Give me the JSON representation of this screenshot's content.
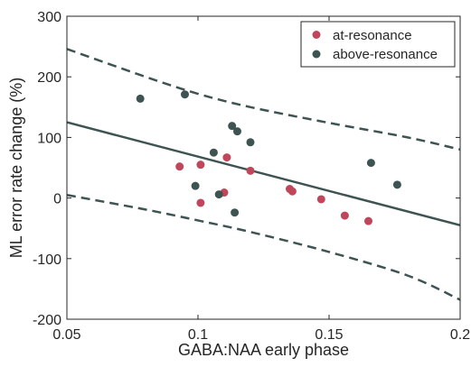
{
  "chart_data": {
    "type": "scatter",
    "title": "",
    "xlabel": "GABA:NAA early phase",
    "ylabel": "ML error rate change (%)",
    "xlim": [
      0.05,
      0.2
    ],
    "ylim": [
      -200,
      300
    ],
    "xticks": [
      0.05,
      0.1,
      0.15,
      0.2
    ],
    "xtick_labels": [
      "0.05",
      "0.1",
      "0.15",
      "0.2"
    ],
    "yticks": [
      -200,
      -100,
      0,
      100,
      200,
      300
    ],
    "ytick_labels": [
      "-200",
      "-100",
      "0",
      "100",
      "200",
      "300"
    ],
    "grid": false,
    "legend_position": "top-right",
    "series": [
      {
        "name": "at-resonance",
        "color": "#c0475b",
        "x": [
          0.093,
          0.101,
          0.101,
          0.11,
          0.111,
          0.12,
          0.135,
          0.136,
          0.147,
          0.156,
          0.165
        ],
        "y": [
          52,
          -8,
          55,
          9,
          67,
          45,
          15,
          11,
          -2,
          -29,
          -38
        ]
      },
      {
        "name": "above-resonance",
        "color": "#3d5452",
        "x": [
          0.078,
          0.095,
          0.099,
          0.106,
          0.108,
          0.113,
          0.114,
          0.115,
          0.12,
          0.166,
          0.176
        ],
        "y": [
          164,
          171,
          20,
          75,
          6,
          119,
          -24,
          110,
          92,
          58,
          22
        ]
      }
    ],
    "fit_line": {
      "color": "#3d5452",
      "x": [
        0.05,
        0.2
      ],
      "y": [
        125,
        -45
      ]
    },
    "confidence_band": {
      "color": "#3d5452",
      "upper": {
        "x": [
          0.05,
          0.08,
          0.1,
          0.12,
          0.15,
          0.18,
          0.2
        ],
        "y": [
          246,
          200,
          172,
          150,
          124,
          100,
          80
        ]
      },
      "lower": {
        "x": [
          0.05,
          0.08,
          0.1,
          0.12,
          0.15,
          0.18,
          0.2
        ],
        "y": [
          5,
          -19,
          -37,
          -56,
          -89,
          -128,
          -168
        ]
      }
    }
  }
}
